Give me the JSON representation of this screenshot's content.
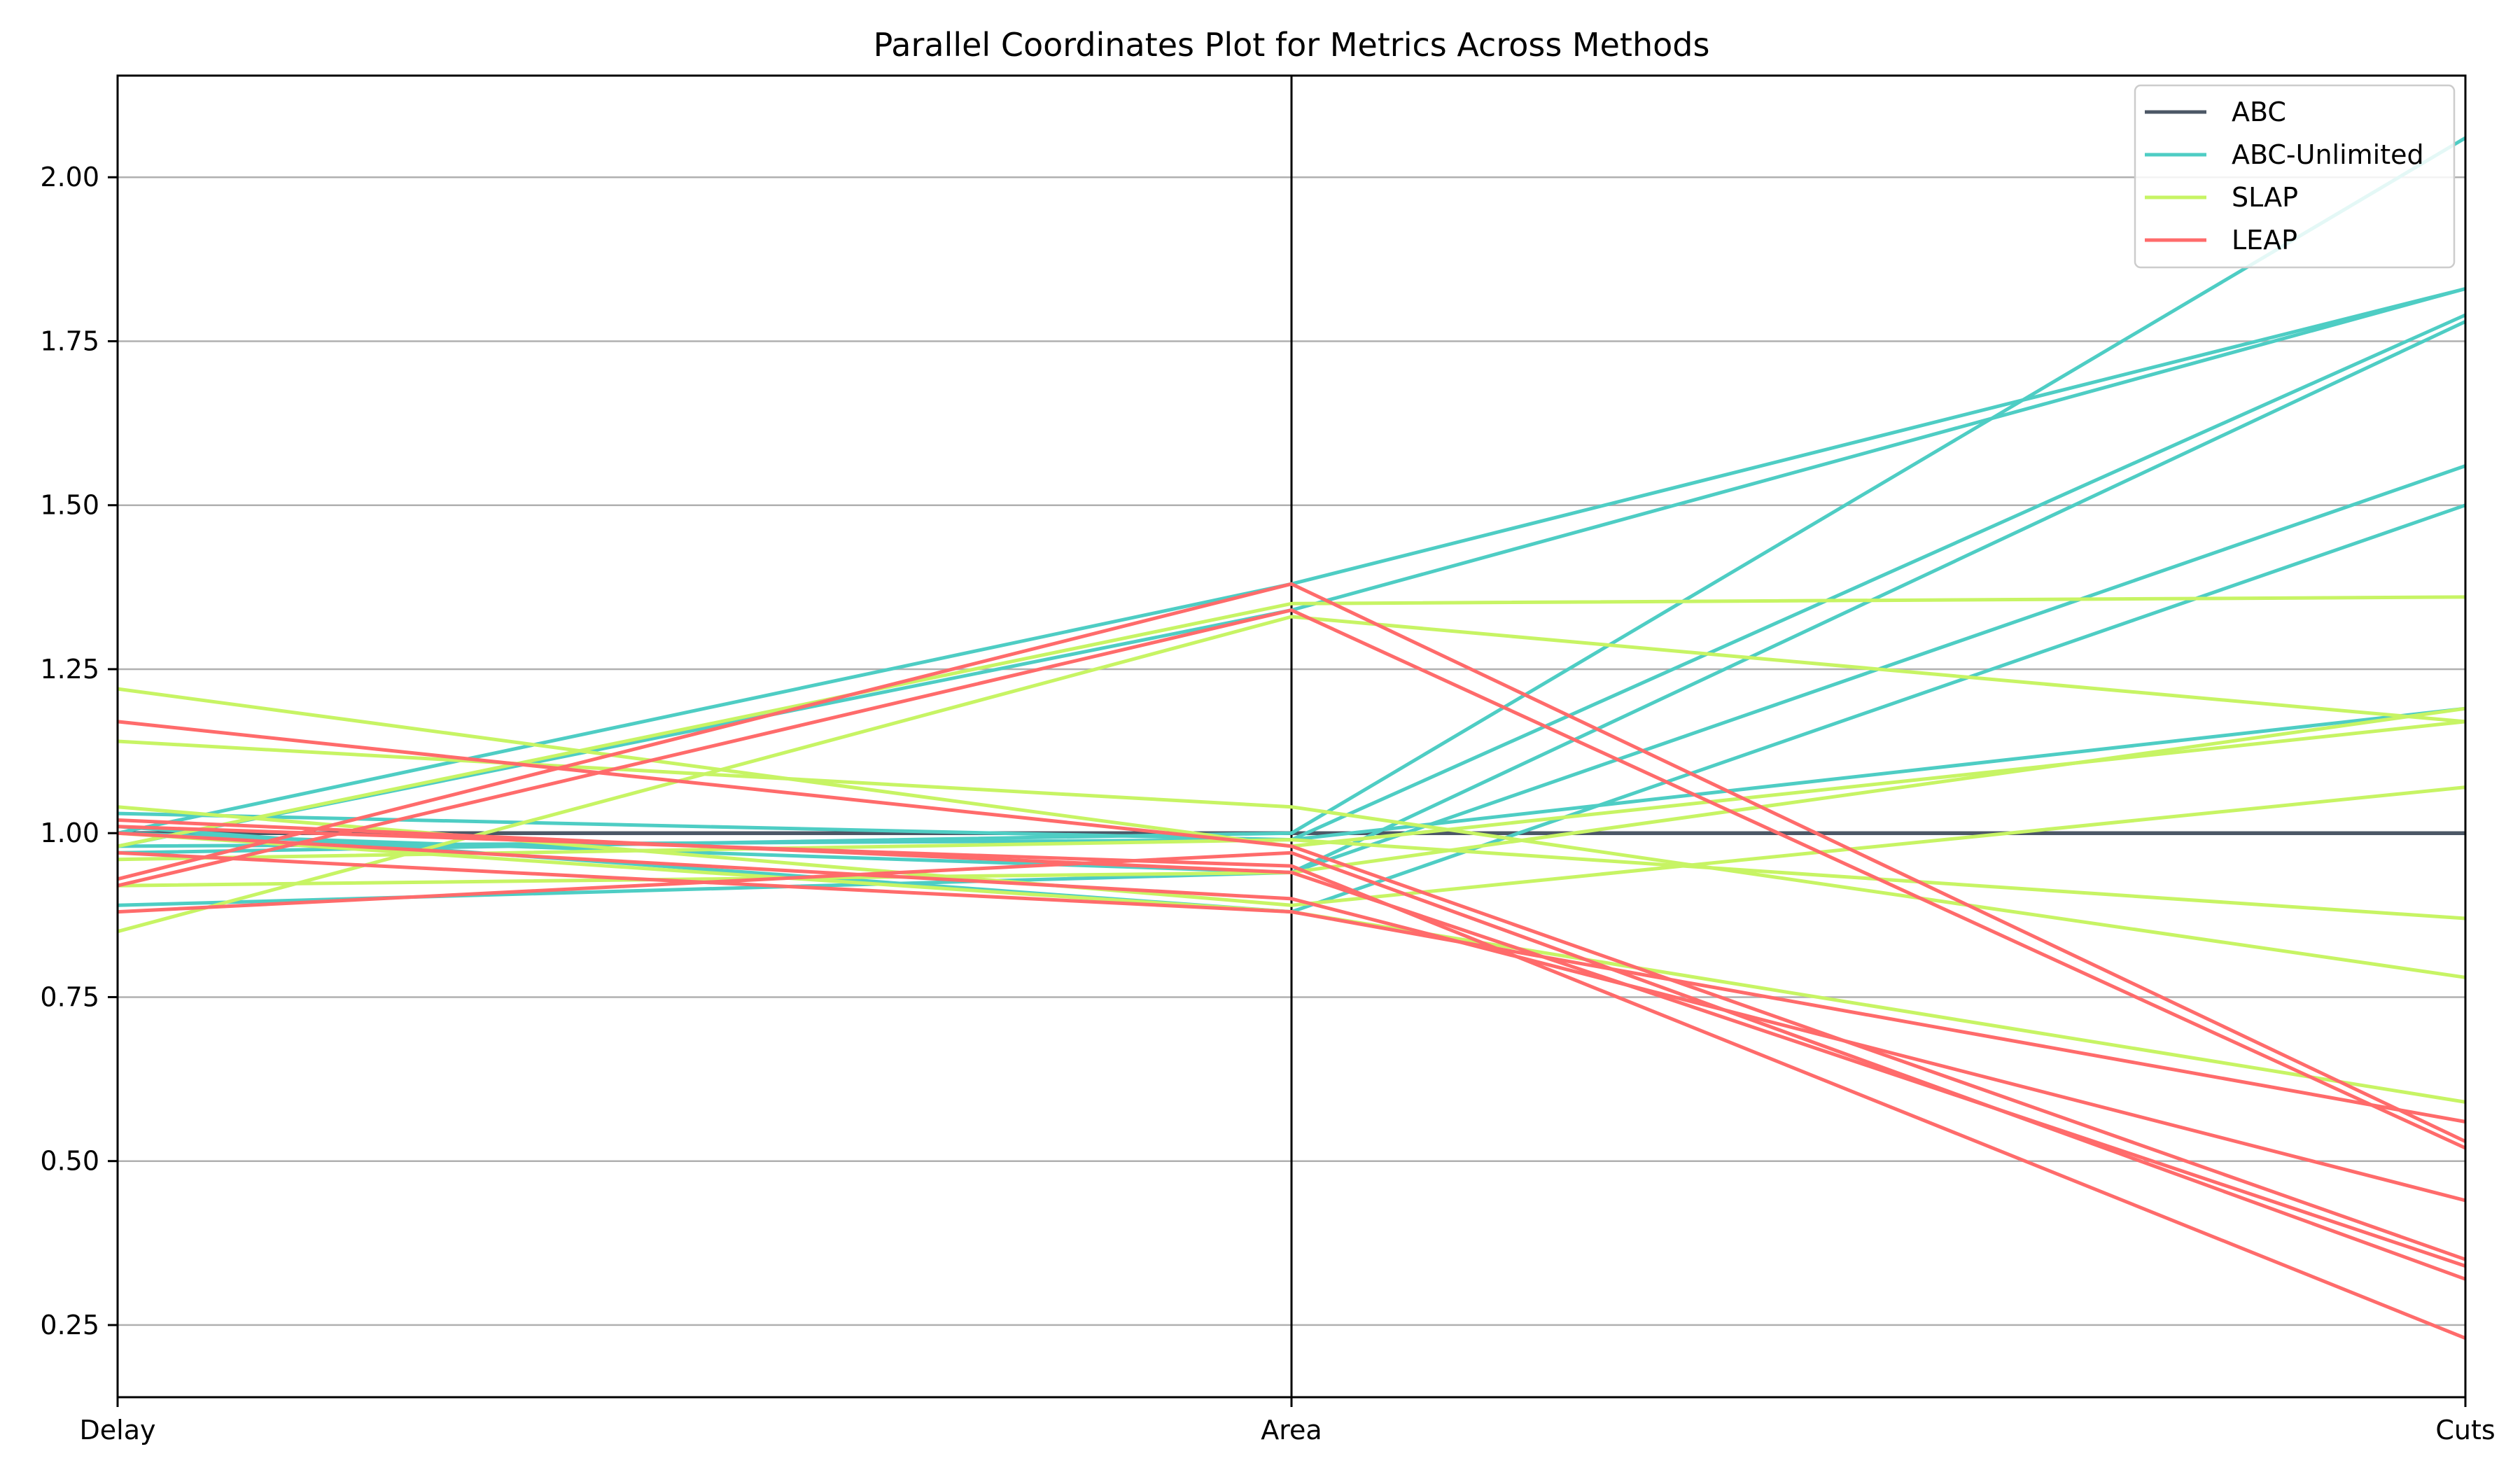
{
  "chart_data": {
    "type": "parallel-coordinates",
    "title": "Parallel Coordinates Plot for Metrics Across Methods",
    "axes": [
      "Delay",
      "Area",
      "Cuts"
    ],
    "ylim": [
      0.14,
      2.155
    ],
    "yticks": [
      0.25,
      0.5,
      0.75,
      1.0,
      1.25,
      1.5,
      1.75,
      2.0
    ],
    "grid": "horizontal",
    "legend_position": "top-right",
    "series": [
      {
        "name": "ABC",
        "color": "#4c5766",
        "lines": [
          [
            1.0,
            1.0,
            1.0
          ],
          [
            1.0,
            1.0,
            1.0
          ],
          [
            1.0,
            1.0,
            1.0
          ],
          [
            1.0,
            1.0,
            1.0
          ],
          [
            1.0,
            1.0,
            1.0
          ],
          [
            1.0,
            1.0,
            1.0
          ]
        ]
      },
      {
        "name": "ABC-Unlimited",
        "color": "#4ecdc4",
        "lines": [
          [
            1.03,
            0.99,
            1.79
          ],
          [
            1.0,
            0.94,
            1.78
          ],
          [
            0.98,
            0.99,
            1.19
          ],
          [
            0.89,
            0.94,
            1.56
          ],
          [
            1.01,
            0.88,
            1.5
          ],
          [
            0.97,
            1.0,
            2.06
          ],
          [
            1.0,
            1.38,
            1.83
          ],
          [
            0.98,
            1.34,
            1.83
          ]
        ]
      },
      {
        "name": "SLAP",
        "color": "#c7f464",
        "lines": [
          [
            1.22,
            0.98,
            1.17
          ],
          [
            1.14,
            1.04,
            0.78
          ],
          [
            1.04,
            0.89,
            1.07
          ],
          [
            0.98,
            1.35,
            1.36
          ],
          [
            0.85,
            1.33,
            1.17
          ],
          [
            0.92,
            0.94,
            1.19
          ],
          [
            0.96,
            0.99,
            0.87
          ],
          [
            1.0,
            0.88,
            0.59
          ]
        ]
      },
      {
        "name": "LEAP",
        "color": "#ff6b6b",
        "lines": [
          [
            1.17,
            0.98,
            0.35
          ],
          [
            1.02,
            0.94,
            0.34
          ],
          [
            0.93,
            1.38,
            0.53
          ],
          [
            0.92,
            1.34,
            0.52
          ],
          [
            0.88,
            0.97,
            0.32
          ],
          [
            1.01,
            0.95,
            0.23
          ],
          [
            1.0,
            0.9,
            0.44
          ],
          [
            0.97,
            0.88,
            0.56
          ]
        ]
      }
    ]
  }
}
